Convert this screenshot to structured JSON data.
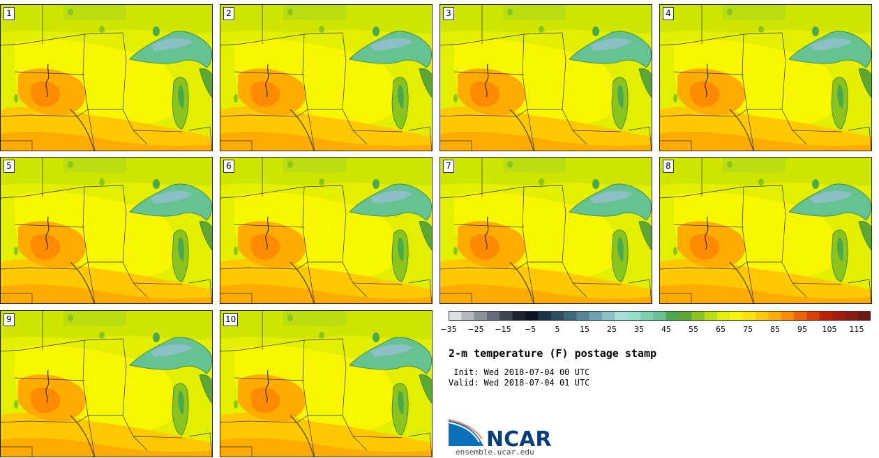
{
  "panels": [
    {
      "label": "1"
    },
    {
      "label": "2"
    },
    {
      "label": "3"
    },
    {
      "label": "4"
    },
    {
      "label": "5"
    },
    {
      "label": "6"
    },
    {
      "label": "7"
    },
    {
      "label": "8"
    },
    {
      "label": "9"
    },
    {
      "label": "10"
    }
  ],
  "colorbar": {
    "tick_labels": [
      "−35",
      "−25",
      "−15",
      "−5",
      "5",
      "15",
      "25",
      "35",
      "45",
      "55",
      "65",
      "75",
      "85",
      "95",
      "105",
      "115"
    ],
    "colors": [
      "#dde0e3",
      "#b3b8be",
      "#8a929b",
      "#636c78",
      "#3c4656",
      "#1a2233",
      "#0c1426",
      "#1a3448",
      "#2c4d62",
      "#3f677c",
      "#578497",
      "#6fa1b0",
      "#8cbfc6",
      "#a8ddd8",
      "#95e0c8",
      "#7fd1ad",
      "#67c291",
      "#4aa94e",
      "#5ea832",
      "#8cc41e",
      "#bade12",
      "#e3ef00",
      "#f8f600",
      "#ffe000",
      "#ffc800",
      "#ffab00",
      "#ff8a00",
      "#f06400",
      "#dc3e00",
      "#c32000",
      "#a81a10",
      "#8a1a12",
      "#6b1a12"
    ]
  },
  "title": "2-m temperature (F) postage stamp",
  "init_line": " Init: Wed 2018-07-04 00 UTC",
  "valid_line": "Valid: Wed 2018-07-04 01 UTC",
  "logo_text": "NCAR",
  "url": "ensemble.ucar.edu"
}
